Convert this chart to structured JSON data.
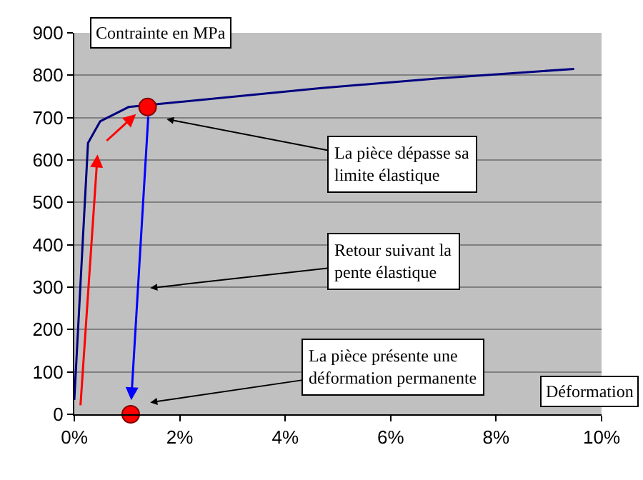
{
  "chart_data": {
    "type": "line",
    "xlabel": "Déformation",
    "ylabel": "Contrainte en MPa",
    "series": [
      {
        "color": "#000080",
        "marker": "none",
        "x": [
          0,
          0.26,
          0.49,
          1.03,
          4.69,
          6.86,
          9.48
        ],
        "values": [
          34,
          640,
          691,
          725,
          770,
          792,
          815
        ]
      },
      {
        "type": "scatter",
        "color": "#ff0000",
        "marker": "circle",
        "x": [
          1.39,
          1.07
        ],
        "values": [
          725,
          0
        ]
      }
    ],
    "annotations": [
      "La pièce dépasse sa\nlimite élastique",
      "Retour suivant la\npente élastique",
      "La pièce présente une\ndéformation permanente"
    ],
    "xlim": [
      0,
      10
    ],
    "ylim": [
      0,
      900
    ],
    "xticks": [
      {
        "value": 0,
        "label": "0%"
      },
      {
        "value": 2,
        "label": "2%"
      },
      {
        "value": 4,
        "label": "4%"
      },
      {
        "value": 6,
        "label": "6%"
      },
      {
        "value": 8,
        "label": "8%"
      },
      {
        "value": 10,
        "label": "10%"
      }
    ],
    "yticks": [
      0,
      100,
      200,
      300,
      400,
      500,
      600,
      700,
      800,
      900
    ],
    "grid": "y"
  }
}
